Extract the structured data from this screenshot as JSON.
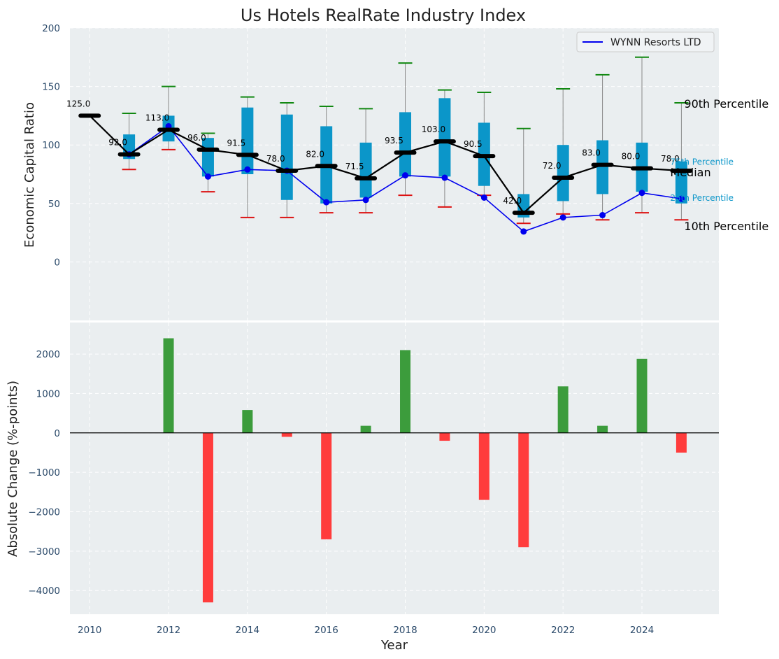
{
  "chart_data": {
    "title": "Us Hotels RealRate Industry Index",
    "type": "box-line-bar",
    "colors": {
      "panel_bg": "#eaeef0",
      "box": "#0b96c9",
      "whisker_line": "#888888",
      "cap_top": "#118811",
      "cap_bottom": "#dd1111",
      "median_line": "#000000",
      "company_line": "#0000ee",
      "bar_positive": "#3c9c3c",
      "bar_negative": "#ff3c3c",
      "percentile_label": "#0b96c9"
    },
    "top": {
      "ylabel": "Economic Capital Ratio",
      "ylim": [
        -50,
        200
      ],
      "yticks": [
        0,
        50,
        100,
        150,
        200
      ],
      "legend": {
        "label": "WYNN Resorts LTD",
        "position": "top-right"
      },
      "years": [
        2010,
        2011,
        2012,
        2013,
        2014,
        2015,
        2016,
        2017,
        2018,
        2019,
        2020,
        2021,
        2022,
        2023,
        2024,
        2025
      ],
      "median": [
        125.0,
        92.0,
        113.0,
        96.0,
        91.5,
        78.0,
        82.0,
        71.5,
        93.5,
        103.0,
        90.5,
        42.0,
        72.0,
        83.0,
        80.0,
        78.0
      ],
      "median_labels": [
        "125.0",
        "92.0",
        "113.0",
        "96.0",
        "91.5",
        "78.0",
        "82.0",
        "71.5",
        "93.5",
        "103.0",
        "90.5",
        "42.0",
        "72.0",
        "83.0",
        "80.0",
        "78.0"
      ],
      "p10": [
        null,
        79,
        96,
        60,
        38,
        38,
        42,
        42,
        57,
        47,
        57,
        33,
        41,
        36,
        42,
        36
      ],
      "p25": [
        null,
        88,
        103,
        73,
        75,
        53,
        50,
        55,
        73,
        73,
        65,
        38,
        52,
        58,
        60,
        50
      ],
      "p75": [
        null,
        109,
        125,
        106,
        132,
        126,
        116,
        102,
        128,
        140,
        119,
        58,
        100,
        104,
        102,
        86
      ],
      "p90": [
        null,
        127,
        150,
        110,
        141,
        136,
        133,
        131,
        170,
        147,
        145,
        114,
        148,
        160,
        175,
        136
      ],
      "company": [
        null,
        92,
        116,
        73,
        79,
        78,
        51,
        53,
        74,
        72,
        55,
        26,
        38,
        40,
        59,
        54
      ],
      "annotations": {
        "p90": "90th Percentile",
        "p75": "75th Percentile",
        "median": "Median",
        "p25": "25th Percentile",
        "p10": "10th Percentile"
      }
    },
    "bottom": {
      "ylabel": "Absolute Change (%-points)",
      "xlabel": "Year",
      "ylim": [
        -4600,
        2800
      ],
      "yticks": [
        -4000,
        -3000,
        -2000,
        -1000,
        0,
        1000,
        2000
      ],
      "ytick_labels": [
        "−4000",
        "−3000",
        "−2000",
        "−1000",
        "0",
        "1000",
        "2000"
      ],
      "years": [
        2012,
        2013,
        2014,
        2015,
        2016,
        2017,
        2018,
        2019,
        2020,
        2021,
        2022,
        2023,
        2024,
        2025
      ],
      "values": [
        2400,
        -4300,
        580,
        -100,
        -2700,
        180,
        2100,
        -200,
        -1700,
        -2900,
        1180,
        180,
        1880,
        -500
      ]
    },
    "xlim": [
      2009.5,
      2025.95
    ],
    "xticks": [
      2010,
      2012,
      2014,
      2016,
      2018,
      2020,
      2022,
      2024
    ]
  }
}
